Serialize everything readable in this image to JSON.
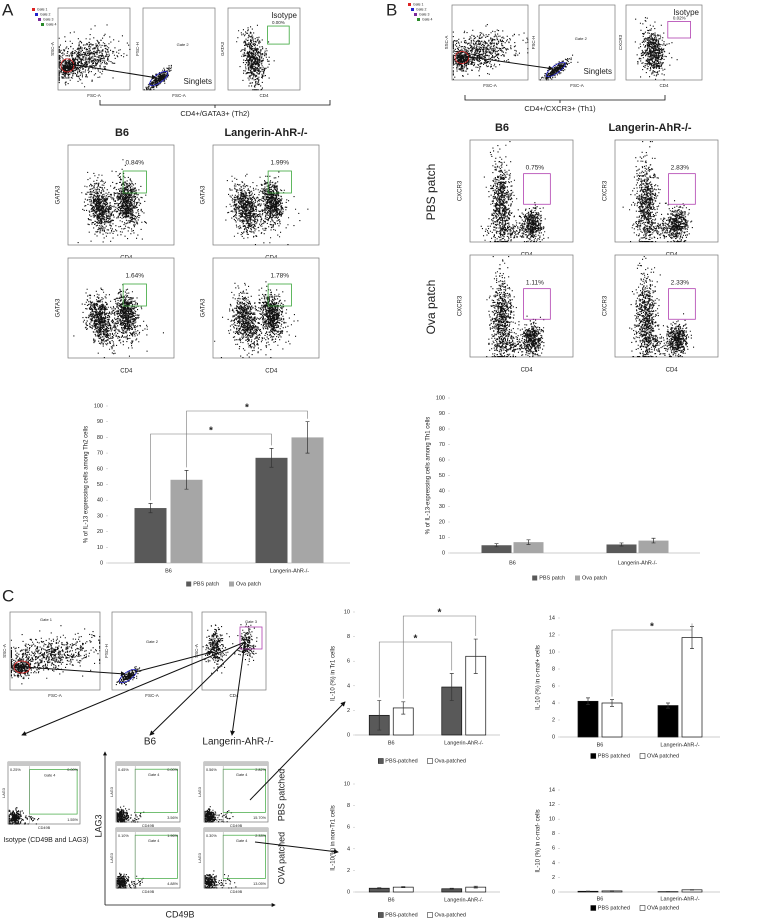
{
  "panel_labels": {
    "a": "A",
    "b": "B",
    "c": "C"
  },
  "gating": {
    "gate_1": "Gate 1",
    "gate_2": "Gate 2",
    "gate_3": "Gate 3",
    "gate_4": "Gate 4",
    "singlets": "Singlets",
    "isotype": "Isotype",
    "ssc_a": "SSC-A",
    "fsc_a": "FSC-A",
    "fsc_h": "FSC-H",
    "cd4": "CD4"
  },
  "panel_a": {
    "subset": "CD4+/GATA3+ (Th2)",
    "isotype_gate": "0.00%",
    "columns": [
      "B6",
      "Langerin-AhR-/-"
    ],
    "y_marker": "GATA3",
    "x_marker": "CD4",
    "gates": [
      [
        "0.84%",
        "1.99%"
      ],
      [
        "1.64%",
        "1.78%"
      ]
    ]
  },
  "panel_b": {
    "subset": "CD4+/CXCR3+ (Th1)",
    "isotype_gate": "0.02%",
    "columns": [
      "B6",
      "Langerin-AhR-/-"
    ],
    "rows": [
      "PBS patch",
      "Ova patch"
    ],
    "y_marker": "CXCR3",
    "x_marker": "CD4",
    "gates": [
      [
        "0.75%",
        "2.83%"
      ],
      [
        "1.11%",
        "2.33%"
      ]
    ]
  },
  "panel_c": {
    "columns": [
      "B6",
      "Langerin-AhR-/-"
    ],
    "rows": [
      "PBS patched",
      "OVA patched"
    ],
    "y_marker": "LAG3",
    "x_marker": "CD49B",
    "isotype": "Isotype (CD49B and LAG3)",
    "isotype_quadrants": [
      "0.25%",
      "0.00%",
      "1.55%"
    ],
    "quadrants": [
      [
        [
          "0.45%",
          "0.00%",
          "3.56%"
        ],
        [
          "0.56%",
          "2.82%",
          "15.70%"
        ]
      ],
      [
        [
          "0.10%",
          "1.96%",
          "4.88%"
        ],
        [
          "0.30%",
          "2.33%",
          "13.05%"
        ]
      ]
    ]
  },
  "chart_data": [
    {
      "type": "bar",
      "y_label": "% of IL-13 expressing cells among Th2 cells",
      "categories": [
        "B6",
        "Langerin-AhR-/-"
      ],
      "series": [
        {
          "name": "PBS patch",
          "color": "#595959",
          "values": [
            35,
            67
          ],
          "errors": [
            3,
            6
          ]
        },
        {
          "name": "Ova patch",
          "color": "#a6a6a6",
          "values": [
            53,
            80
          ],
          "errors": [
            6,
            10
          ]
        }
      ],
      "ylim": [
        0,
        100
      ],
      "yticks": [
        0,
        10,
        20,
        30,
        40,
        50,
        60,
        70,
        80,
        90,
        100
      ],
      "bar_outline": false,
      "annotations": [
        "*",
        "*"
      ]
    },
    {
      "type": "bar",
      "y_label": "% of IL-13-expressing cells among Th1 cells",
      "categories": [
        "B6",
        "Langerin-AhR-/-"
      ],
      "series": [
        {
          "name": "PBS patch",
          "color": "#595959",
          "values": [
            5,
            5.5
          ],
          "errors": [
            1,
            1
          ]
        },
        {
          "name": "Ova patch",
          "color": "#a6a6a6",
          "values": [
            7,
            8
          ],
          "errors": [
            1.5,
            1.5
          ]
        }
      ],
      "ylim": [
        0,
        100
      ],
      "yticks": [
        0,
        10,
        20,
        30,
        40,
        50,
        60,
        70,
        80,
        90,
        100
      ],
      "bar_outline": false,
      "annotations": []
    },
    {
      "type": "bar",
      "y_label": "IL-10 (%) in Tr1 cells",
      "categories": [
        "B6",
        "Langerin-AhR-/-"
      ],
      "series": [
        {
          "name": "PBS-patched",
          "color": "#595959",
          "values": [
            1.6,
            3.9
          ],
          "errors": [
            1.2,
            1.1
          ]
        },
        {
          "name": "Ova-patched",
          "color": "#ffffff",
          "values": [
            2.2,
            6.4
          ],
          "errors": [
            0.5,
            1.4
          ]
        }
      ],
      "ylim": [
        0,
        10
      ],
      "yticks": [
        0,
        2,
        4,
        6,
        8,
        10
      ],
      "bar_outline": true,
      "annotations": [
        "*",
        "*"
      ]
    },
    {
      "type": "bar",
      "y_label": "IL-10 (%) in c-maf+ cells",
      "categories": [
        "B6",
        "Langerin-AhR-/-"
      ],
      "series": [
        {
          "name": "PBS patched",
          "color": "#000000",
          "values": [
            4.2,
            3.7
          ],
          "errors": [
            0.4,
            0.3
          ]
        },
        {
          "name": "OVA patched",
          "color": "#ffffff",
          "values": [
            4.0,
            11.7
          ],
          "errors": [
            0.4,
            1.3
          ]
        }
      ],
      "ylim": [
        0,
        14
      ],
      "yticks": [
        0,
        2,
        4,
        6,
        8,
        10,
        12,
        14
      ],
      "bar_outline": true,
      "annotations": [
        "*"
      ]
    },
    {
      "type": "bar",
      "y_label": "IL-10(%) in non-Tr1 cells",
      "categories": [
        "B6",
        "Langerin-AhR-/-"
      ],
      "series": [
        {
          "name": "PBS-patched",
          "color": "#595959",
          "values": [
            0.35,
            0.3
          ],
          "errors": [
            0.05,
            0.05
          ]
        },
        {
          "name": "Ova-patched",
          "color": "#ffffff",
          "values": [
            0.45,
            0.45
          ],
          "errors": [
            0.05,
            0.08
          ]
        }
      ],
      "ylim": [
        0,
        10
      ],
      "yticks": [
        0,
        2,
        4,
        6,
        8,
        10
      ],
      "bar_outline": true,
      "annotations": []
    },
    {
      "type": "bar",
      "y_label": "IL-10 (%) in c-maf- cells",
      "categories": [
        "B6",
        "Langerin-AhR-/-"
      ],
      "series": [
        {
          "name": "PBS patched",
          "color": "#000000",
          "values": [
            0.1,
            0.05
          ],
          "errors": [
            0.02,
            0.02
          ]
        },
        {
          "name": "OVA patched",
          "color": "#ffffff",
          "values": [
            0.15,
            0.3
          ],
          "errors": [
            0.03,
            0.03
          ]
        }
      ],
      "ylim": [
        0,
        14
      ],
      "yticks": [
        0,
        2,
        4,
        6,
        8,
        10,
        12,
        14
      ],
      "bar_outline": true,
      "annotations": []
    }
  ]
}
